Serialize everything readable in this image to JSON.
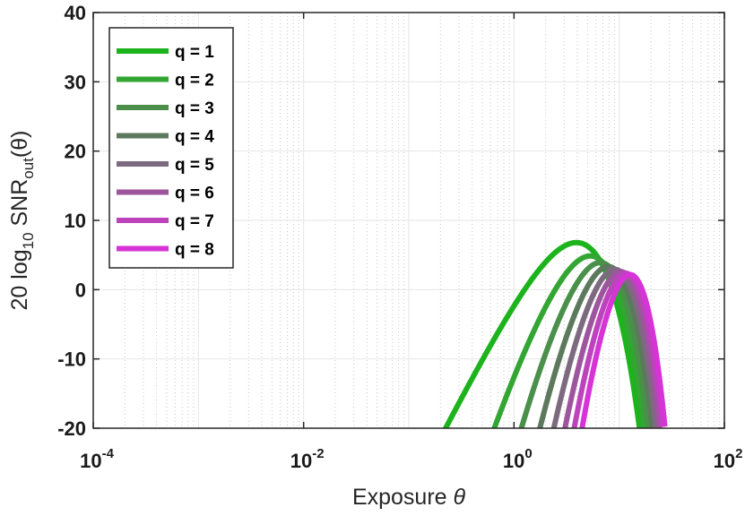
{
  "chart_data": {
    "type": "line",
    "x_scale": "log",
    "xlim": [
      0.0001,
      100
    ],
    "ylim": [
      -20,
      40
    ],
    "grid": true,
    "legend_position": "top-left",
    "xlabel": {
      "main": "Exposure ",
      "symbol": "θ"
    },
    "ylabel": {
      "prefix": "20 log",
      "sub1": "10",
      "mid": " SNR",
      "sub2": "out",
      "suffix": "(θ)"
    },
    "x_ticks": [
      {
        "value": 0.0001,
        "base": "10",
        "exp": "-4"
      },
      {
        "value": 0.01,
        "base": "10",
        "exp": "-2"
      },
      {
        "value": 1,
        "base": "10",
        "exp": "0"
      },
      {
        "value": 100,
        "base": "10",
        "exp": "2"
      }
    ],
    "y_ticks": [
      {
        "value": -20,
        "label": "-20"
      },
      {
        "value": -10,
        "label": "-10"
      },
      {
        "value": 0,
        "label": "0"
      },
      {
        "value": 10,
        "label": "10"
      },
      {
        "value": 20,
        "label": "20"
      },
      {
        "value": 30,
        "label": "30"
      },
      {
        "value": 40,
        "label": "40"
      }
    ],
    "series": [
      {
        "name": "q = 1",
        "q": 1,
        "color": "#1db31d"
      },
      {
        "name": "q = 2",
        "q": 2,
        "color": "#32a532"
      },
      {
        "name": "q = 3",
        "q": 3,
        "color": "#4a8f4a"
      },
      {
        "name": "q = 4",
        "q": 4,
        "color": "#5d795d"
      },
      {
        "name": "q = 5",
        "q": 5,
        "color": "#7d6a80"
      },
      {
        "name": "q = 6",
        "q": 6,
        "color": "#9d569d"
      },
      {
        "name": "q = 7",
        "q": 7,
        "color": "#bc43bc"
      },
      {
        "name": "q = 8",
        "q": 8,
        "color": "#d634d6"
      }
    ]
  }
}
